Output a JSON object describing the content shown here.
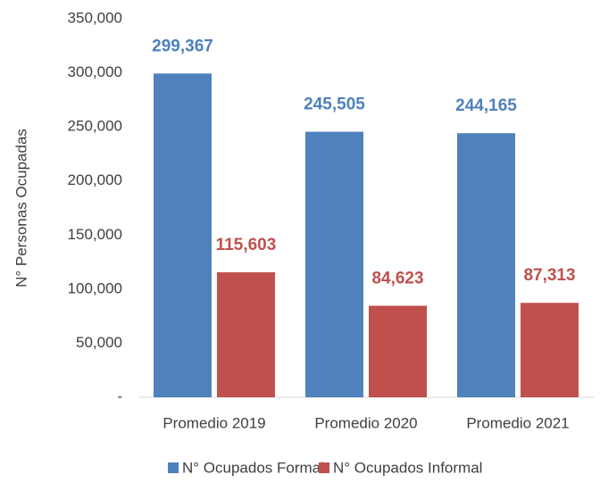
{
  "chart_data": {
    "type": "bar",
    "y_label": "N° Personas Ocupadas",
    "categories": [
      "Promedio 2019",
      "Promedio 2020",
      "Promedio 2021"
    ],
    "series": [
      {
        "name": "N° Ocupados Formal",
        "color": "#4f81bd",
        "values": [
          299367,
          245505,
          244165
        ],
        "value_labels": [
          "299,367",
          "245,505",
          "244,165"
        ]
      },
      {
        "name": "N° Ocupados Informal",
        "color": "#c0504d",
        "values": [
          115603,
          84623,
          87313
        ],
        "value_labels": [
          "115,603",
          "84,623",
          "87,313"
        ]
      }
    ],
    "ylim": [
      0,
      350000
    ],
    "yticks": [
      {
        "value": 0,
        "label": "-"
      },
      {
        "value": 50000,
        "label": "50,000"
      },
      {
        "value": 100000,
        "label": "100,000"
      },
      {
        "value": 150000,
        "label": "150,000"
      },
      {
        "value": 200000,
        "label": "200,000"
      },
      {
        "value": 250000,
        "label": "250,000"
      },
      {
        "value": 300000,
        "label": "300,000"
      },
      {
        "value": 350000,
        "label": "350,000"
      }
    ],
    "grid": false,
    "legend": "bottom"
  }
}
